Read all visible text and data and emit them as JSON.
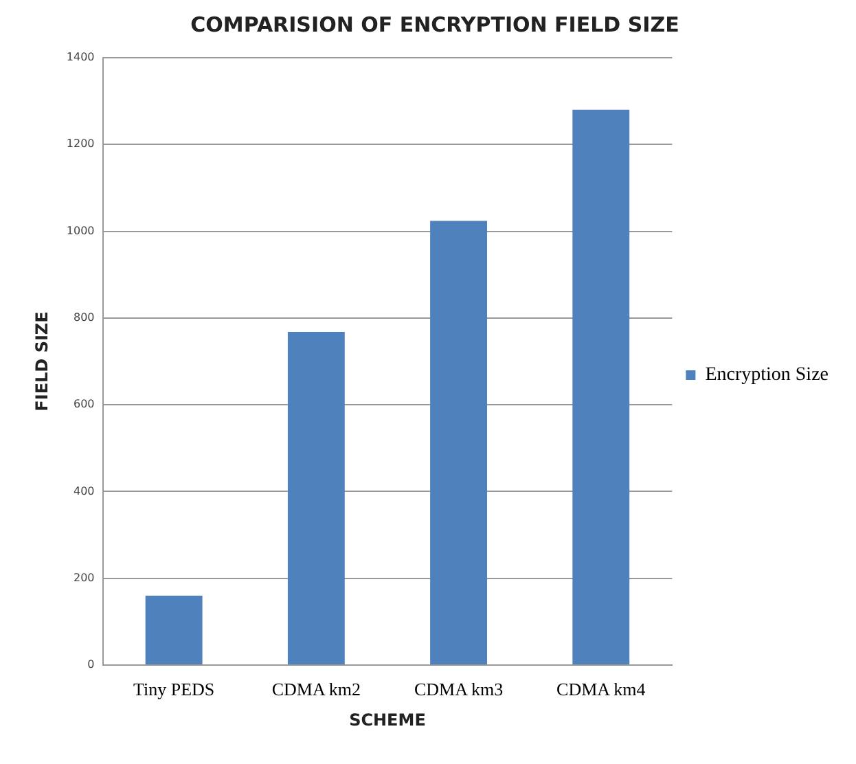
{
  "chart_data": {
    "type": "bar",
    "title": "COMPARISION OF ENCRYPTION FIELD SIZE",
    "xlabel": "SCHEME",
    "ylabel": "FIELD SIZE",
    "categories": [
      "Tiny PEDS",
      "CDMA km2",
      "CDMA km3",
      "CDMA km4"
    ],
    "series": [
      {
        "name": "Encryption Size",
        "color": "#4f81bd",
        "values": [
          160,
          768,
          1024,
          1280
        ]
      }
    ],
    "ylim": [
      0,
      1400
    ],
    "yticks": [
      0,
      200,
      400,
      600,
      800,
      1000,
      1200,
      1400
    ],
    "grid": "y",
    "legend": "right"
  }
}
